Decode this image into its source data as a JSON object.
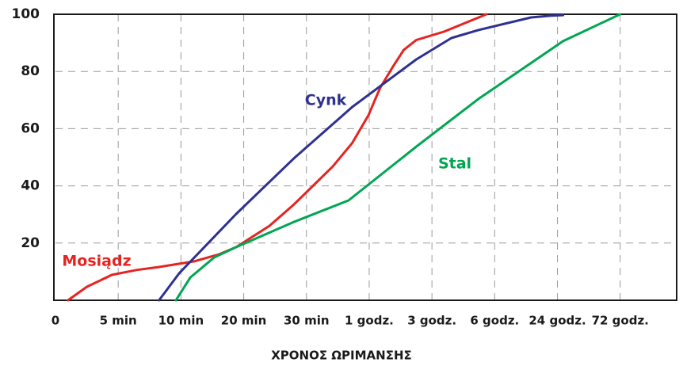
{
  "chart_data": {
    "type": "line",
    "xlabel": "ΧΡΟΝΟΣ ΩΡΙΜΑΝΣΗΣ",
    "xlim": [
      0,
      9.9
    ],
    "xticks": [
      0,
      {
        "value": 1,
        "label": "5 min"
      },
      {
        "value": 2,
        "label": "10 min"
      },
      {
        "value": 3,
        "label": "20 min"
      },
      {
        "value": 4,
        "label": "30 min"
      },
      {
        "value": 5,
        "label": "1 godz."
      },
      {
        "value": 6,
        "label": "3 godz."
      },
      {
        "value": 7,
        "label": "6 godz."
      },
      {
        "value": 8,
        "label": "24 godz."
      },
      {
        "value": 9,
        "label": "72 godz."
      }
    ],
    "ylim": [
      0,
      100
    ],
    "yticks": [
      20,
      40,
      60,
      80,
      100
    ],
    "grid": true,
    "series": [
      {
        "name": "Mosiądz",
        "color": "#e52421",
        "x": [
          0.2,
          0.5,
          0.9,
          1.3,
          1.64,
          2.21,
          2.6,
          2.88,
          3.41,
          3.8,
          4.42,
          4.73,
          4.99,
          5.1,
          5.18,
          5.37,
          5.55,
          5.75,
          6.19,
          6.87
        ],
        "values": [
          0,
          4.7,
          8.9,
          10.6,
          11.6,
          13.6,
          16,
          18.6,
          26,
          33.5,
          46.8,
          55,
          64.8,
          70.5,
          74.5,
          81.4,
          87.5,
          91,
          93.9,
          100
        ]
      },
      {
        "name": "Cynk",
        "color": "#2e3192",
        "x": [
          1.65,
          1.97,
          2.88,
          3.8,
          4.73,
          5.75,
          6.31,
          6.74,
          7.58,
          7.9,
          8.09
        ],
        "values": [
          0,
          9.4,
          30.2,
          49.6,
          67.6,
          84.2,
          91.7,
          94.5,
          98.9,
          99.5,
          99.7
        ]
      },
      {
        "name": "Stal",
        "color": "#00a651",
        "x": [
          1.92,
          2.15,
          2.53,
          2.88,
          3.8,
          4.67,
          5.75,
          6.74,
          8.09,
          9
        ],
        "values": [
          0,
          8,
          15,
          18.6,
          27.4,
          34.9,
          53.7,
          70.4,
          90.6,
          100
        ]
      }
    ]
  }
}
